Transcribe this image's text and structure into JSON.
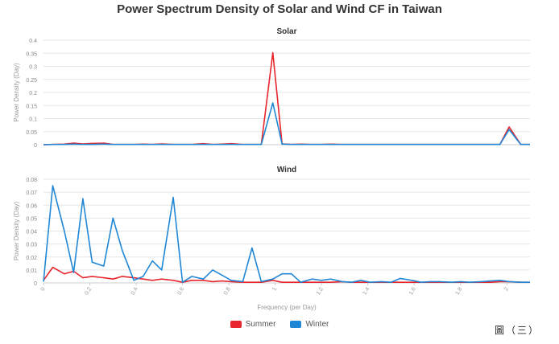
{
  "title": "Power Spectrum Density of Solar and Wind CF in Taiwan",
  "caption": "圖（三）",
  "colors": {
    "summer": "#e8252d",
    "winter": "#1f87d6",
    "grid": "#e6e6e6",
    "axis": "#cccccc"
  },
  "chart_data": [
    {
      "type": "line",
      "title": "Solar",
      "ylabel": "Power Density (Day)",
      "xlabel": "",
      "xlim": [
        0,
        2.1
      ],
      "ylim": [
        0,
        0.4
      ],
      "yticks": [
        0,
        0.05,
        0.1,
        0.15,
        0.2,
        0.25,
        0.3,
        0.35,
        0.4
      ],
      "ytick_labels": [
        "0",
        "0.05",
        "0.1",
        "0.15",
        "0.2",
        "0.25",
        "0.3",
        "0.35",
        "0.4"
      ],
      "xticks_shown": false,
      "grid": true,
      "x": [
        0,
        0.04,
        0.09,
        0.13,
        0.17,
        0.21,
        0.26,
        0.3,
        0.34,
        0.39,
        0.43,
        0.47,
        0.51,
        0.56,
        0.6,
        0.64,
        0.69,
        0.73,
        0.77,
        0.81,
        0.86,
        0.9,
        0.94,
        0.99,
        1.03,
        1.07,
        1.11,
        1.16,
        1.2,
        1.24,
        1.29,
        1.33,
        1.37,
        1.41,
        1.46,
        1.5,
        1.54,
        1.59,
        1.63,
        1.67,
        1.71,
        1.76,
        1.8,
        1.84,
        1.89,
        1.93,
        1.97,
        2.01,
        2.06,
        2.1
      ],
      "series": [
        {
          "name": "Summer",
          "color_key": "summer",
          "values": [
            0,
            0.001,
            0.002,
            0.006,
            0.003,
            0.005,
            0.006,
            0.001,
            0.001,
            0.001,
            0.002,
            0.001,
            0.003,
            0.001,
            0.001,
            0.001,
            0.004,
            0.001,
            0.002,
            0.004,
            0.001,
            0.001,
            0.001,
            0.352,
            0.003,
            0.001,
            0.002,
            0.001,
            0.001,
            0.002,
            0.001,
            0.001,
            0.001,
            0.001,
            0.001,
            0.001,
            0.001,
            0.001,
            0.001,
            0.001,
            0.001,
            0.001,
            0.001,
            0.001,
            0.001,
            0.001,
            0.001,
            0.068,
            0.001,
            0.001
          ]
        },
        {
          "name": "Winter",
          "color_key": "winter",
          "values": [
            0,
            0.001,
            0.001,
            0.002,
            0.001,
            0.001,
            0.002,
            0.001,
            0.001,
            0.001,
            0.001,
            0.001,
            0.001,
            0.001,
            0.001,
            0.001,
            0.001,
            0.001,
            0.001,
            0.001,
            0.001,
            0.001,
            0.001,
            0.16,
            0.002,
            0.001,
            0.001,
            0.001,
            0.001,
            0.001,
            0.001,
            0.001,
            0.001,
            0.001,
            0.001,
            0.001,
            0.001,
            0.001,
            0.001,
            0.001,
            0.001,
            0.001,
            0.001,
            0.001,
            0.001,
            0.001,
            0.001,
            0.058,
            0.001,
            0.001
          ]
        }
      ]
    },
    {
      "type": "line",
      "title": "Wind",
      "ylabel": "Power Density (Day)",
      "xlabel": "Frequency (per Day)",
      "xlim": [
        0,
        2.1
      ],
      "ylim": [
        0,
        0.08
      ],
      "yticks": [
        0,
        0.01,
        0.02,
        0.03,
        0.04,
        0.05,
        0.06,
        0.07,
        0.08
      ],
      "ytick_labels": [
        "0",
        "0.01",
        "0.02",
        "0.03",
        "0.04",
        "0.05",
        "0.06",
        "0.07",
        "0.08"
      ],
      "xticks": [
        0,
        0.2,
        0.4,
        0.6,
        0.8,
        1,
        1.2,
        1.4,
        1.6,
        1.8,
        2
      ],
      "xtick_labels": [
        "0",
        "0.2",
        "0.4",
        "0.6",
        "0.8",
        "1",
        "1.2",
        "1.4",
        "1.6",
        "1.8",
        "2"
      ],
      "grid": true,
      "x": [
        0,
        0.04,
        0.09,
        0.13,
        0.17,
        0.21,
        0.26,
        0.3,
        0.34,
        0.39,
        0.43,
        0.47,
        0.51,
        0.56,
        0.6,
        0.64,
        0.69,
        0.73,
        0.77,
        0.81,
        0.86,
        0.9,
        0.94,
        0.99,
        1.03,
        1.07,
        1.11,
        1.16,
        1.2,
        1.24,
        1.29,
        1.33,
        1.37,
        1.41,
        1.46,
        1.5,
        1.54,
        1.59,
        1.63,
        1.67,
        1.71,
        1.76,
        1.8,
        1.84,
        1.89,
        1.93,
        1.97,
        2.01,
        2.06,
        2.1
      ],
      "series": [
        {
          "name": "Summer",
          "color_key": "summer",
          "values": [
            0.002,
            0.012,
            0.007,
            0.009,
            0.004,
            0.005,
            0.004,
            0.003,
            0.005,
            0.004,
            0.003,
            0.002,
            0.003,
            0.002,
            0.0005,
            0.002,
            0.002,
            0.001,
            0.0015,
            0.001,
            0.0005,
            0.0005,
            0.0005,
            0.002,
            0.0005,
            0.0005,
            0.0005,
            0.0005,
            0.0005,
            0.0005,
            0.001,
            0.0005,
            0.0005,
            0.0005,
            0.0005,
            0.0005,
            0.0005,
            0.0005,
            0.0005,
            0.0005,
            0.0005,
            0.0005,
            0.0005,
            0.0005,
            0.0005,
            0.0005,
            0.001,
            0.001,
            0.0005,
            0.0005
          ]
        },
        {
          "name": "Winter",
          "color_key": "winter",
          "values": [
            0.001,
            0.075,
            0.04,
            0.008,
            0.065,
            0.016,
            0.013,
            0.05,
            0.025,
            0.002,
            0.005,
            0.017,
            0.01,
            0.066,
            0.0005,
            0.005,
            0.003,
            0.01,
            0.006,
            0.002,
            0.001,
            0.027,
            0.001,
            0.003,
            0.007,
            0.007,
            0.0005,
            0.003,
            0.002,
            0.003,
            0.001,
            0.0005,
            0.002,
            0.0005,
            0.001,
            0.0005,
            0.0035,
            0.002,
            0.0005,
            0.001,
            0.001,
            0.0005,
            0.001,
            0.0005,
            0.001,
            0.0015,
            0.002,
            0.001,
            0.0005,
            0.0005
          ]
        }
      ]
    }
  ],
  "legend": [
    {
      "label": "Summer",
      "color_key": "summer"
    },
    {
      "label": "Winter",
      "color_key": "winter"
    }
  ]
}
